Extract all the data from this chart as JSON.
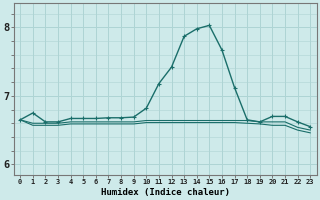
{
  "xlabel": "Humidex (Indice chaleur)",
  "background_color": "#ceeaea",
  "grid_color": "#aed4d4",
  "line_color": "#1a6e6a",
  "x_ticks": [
    0,
    1,
    2,
    3,
    4,
    5,
    6,
    7,
    8,
    9,
    10,
    11,
    12,
    13,
    14,
    15,
    16,
    17,
    18,
    19,
    20,
    21,
    22,
    23
  ],
  "y_ticks": [
    6,
    7,
    8
  ],
  "ylim": [
    5.85,
    8.35
  ],
  "xlim": [
    -0.5,
    23.5
  ],
  "series": [
    {
      "x": [
        0,
        1,
        2,
        3,
        4,
        5,
        6,
        7,
        8,
        9,
        10,
        11,
        12,
        13,
        14,
        15,
        16,
        17,
        18,
        19,
        20,
        21,
        22,
        23
      ],
      "y": [
        6.65,
        6.75,
        6.62,
        6.62,
        6.67,
        6.67,
        6.67,
        6.68,
        6.68,
        6.69,
        6.82,
        7.18,
        7.42,
        7.87,
        7.98,
        8.03,
        7.67,
        7.12,
        6.65,
        6.62,
        6.7,
        6.7,
        6.62,
        6.55
      ],
      "marker": true,
      "linewidth": 1.0
    },
    {
      "x": [
        0,
        1,
        2,
        3,
        4,
        5,
        6,
        7,
        8,
        9,
        10,
        11,
        12,
        13,
        14,
        15,
        16,
        17,
        18,
        19,
        20,
        21,
        22,
        23
      ],
      "y": [
        6.65,
        6.6,
        6.6,
        6.6,
        6.62,
        6.62,
        6.62,
        6.62,
        6.62,
        6.62,
        6.64,
        6.64,
        6.64,
        6.64,
        6.64,
        6.64,
        6.64,
        6.64,
        6.64,
        6.62,
        6.62,
        6.62,
        6.54,
        6.5
      ],
      "marker": false,
      "linewidth": 0.8
    },
    {
      "x": [
        0,
        1,
        2,
        3,
        4,
        5,
        6,
        7,
        8,
        9,
        10,
        11,
        12,
        13,
        14,
        15,
        16,
        17,
        18,
        19,
        20,
        21,
        22,
        23
      ],
      "y": [
        6.65,
        6.57,
        6.57,
        6.57,
        6.59,
        6.59,
        6.59,
        6.59,
        6.59,
        6.59,
        6.61,
        6.61,
        6.61,
        6.61,
        6.61,
        6.61,
        6.61,
        6.61,
        6.6,
        6.59,
        6.57,
        6.57,
        6.5,
        6.46
      ],
      "marker": false,
      "linewidth": 0.8
    }
  ]
}
